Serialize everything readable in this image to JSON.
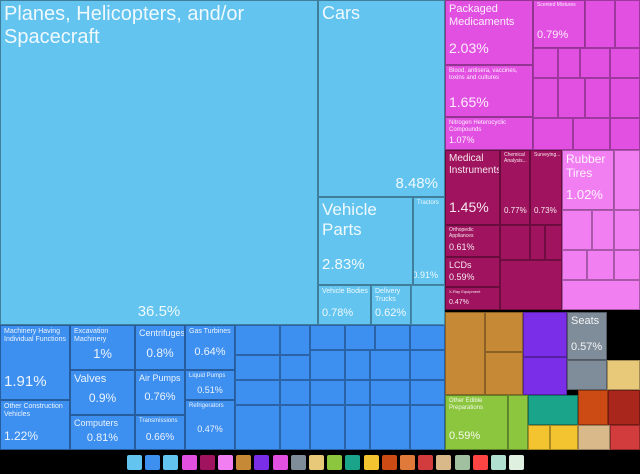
{
  "chart_data": {
    "type": "treemap",
    "tiles": [
      {
        "label": "Planes, Helicopters, and/or Spacecraft",
        "value": 36.5,
        "value_label": "36.5%",
        "color": "#62c4ef"
      },
      {
        "label": "Cars",
        "value": 8.48,
        "value_label": "8.48%",
        "color": "#62c4ef"
      },
      {
        "label": "Vehicle Parts",
        "value": 2.83,
        "value_label": "2.83%",
        "color": "#62c4ef"
      },
      {
        "label": "Tractors",
        "value": 0.91,
        "value_label": "0.91%",
        "color": "#62c4ef"
      },
      {
        "label": "Vehicle Bodies",
        "value": 0.78,
        "value_label": "0.78%",
        "color": "#62c4ef"
      },
      {
        "label": "Delivery Trucks",
        "value": 0.62,
        "value_label": "0.62%",
        "color": "#62c4ef"
      },
      {
        "label": "Machinery Having Individual Functions",
        "value": 1.91,
        "value_label": "1.91%",
        "color": "#3d8ff0"
      },
      {
        "label": "Other Construction Vehicles",
        "value": 1.22,
        "value_label": "1.22%",
        "color": "#3d8ff0"
      },
      {
        "label": "Excavation Machinery",
        "value": 1,
        "value_label": "1%",
        "color": "#3d8ff0"
      },
      {
        "label": "Valves",
        "value": 0.9,
        "value_label": "0.9%",
        "color": "#3d8ff0"
      },
      {
        "label": "Computers",
        "value": 0.81,
        "value_label": "0.81%",
        "color": "#3d8ff0"
      },
      {
        "label": "Centrifuges",
        "value": 0.8,
        "value_label": "0.8%",
        "color": "#3d8ff0"
      },
      {
        "label": "Air Pumps",
        "value": 0.76,
        "value_label": "0.76%",
        "color": "#3d8ff0"
      },
      {
        "label": "Transmissions",
        "value": 0.66,
        "value_label": "0.66%",
        "color": "#3d8ff0"
      },
      {
        "label": "Gas Turbines",
        "value": 0.64,
        "value_label": "0.64%",
        "color": "#3d8ff0"
      },
      {
        "label": "Liquid Pumps",
        "value": 0.51,
        "value_label": "0.51%",
        "color": "#3d8ff0"
      },
      {
        "label": "Refrigerators",
        "value": 0.47,
        "value_label": "0.47%",
        "color": "#3d8ff0"
      },
      {
        "label": "Packaged Medicaments",
        "value": 2.03,
        "value_label": "2.03%",
        "color": "#e250e2"
      },
      {
        "label": "Blood, antisera, vaccines, toxins and cultures",
        "value": 1.65,
        "value_label": "1.65%",
        "color": "#e250e2"
      },
      {
        "label": "Nitrogen Heterocyclic Compounds",
        "value": 1.07,
        "value_label": "1.07%",
        "color": "#e250e2"
      },
      {
        "label": "Scented Mixtures",
        "value": 0.79,
        "value_label": "0.79%",
        "color": "#e250e2"
      },
      {
        "label": "Medical Instruments",
        "value": 1.45,
        "value_label": "1.45%",
        "color": "#a0135f"
      },
      {
        "label": "Chemical Analysis...",
        "value": 0.77,
        "value_label": "0.77%",
        "color": "#a0135f"
      },
      {
        "label": "Surveying...",
        "value": 0.73,
        "value_label": "0.73%",
        "color": "#a0135f"
      },
      {
        "label": "Orthopedic Appliances",
        "value": 0.61,
        "value_label": "0.61%",
        "color": "#a0135f"
      },
      {
        "label": "LCDs",
        "value": 0.59,
        "value_label": "0.59%",
        "color": "#a0135f"
      },
      {
        "label": "X-Ray Equipment",
        "value": 0.47,
        "value_label": "0.47%",
        "color": "#a0135f"
      },
      {
        "label": "Rubber Tires",
        "value": 1.02,
        "value_label": "1.02%",
        "color": "#f27ff2"
      },
      {
        "label": "Seats",
        "value": 0.57,
        "value_label": "0.57%",
        "color": "#7f8c99"
      },
      {
        "label": "Other Edible Preparations",
        "value": 0.59,
        "value_label": "0.59%",
        "color": "#8cc63f"
      }
    ]
  }
}
